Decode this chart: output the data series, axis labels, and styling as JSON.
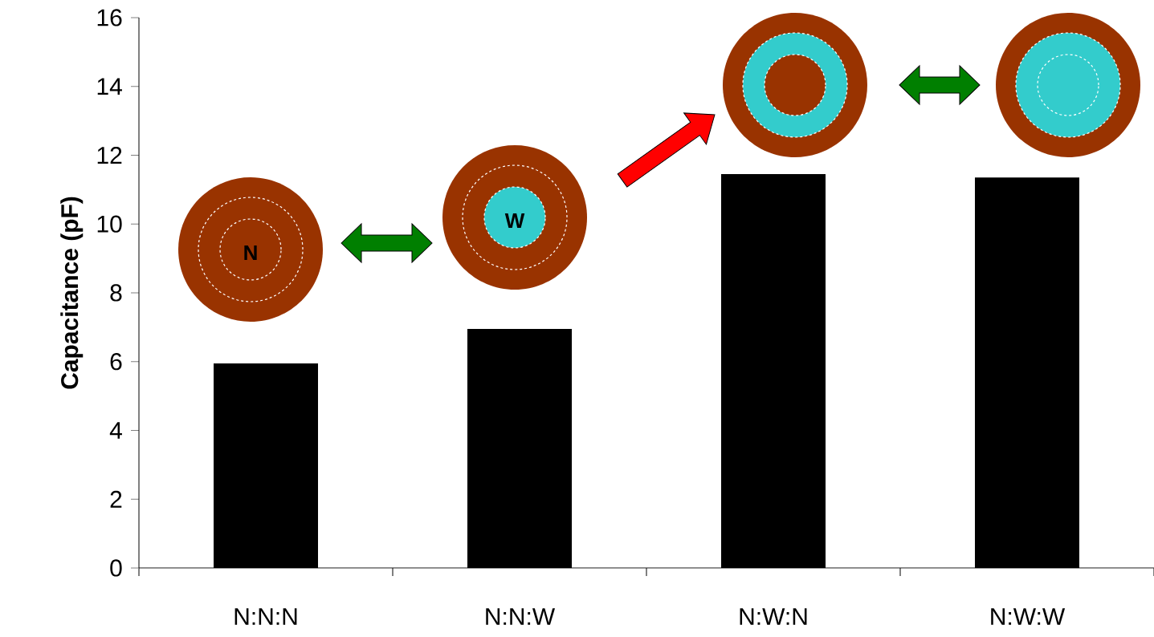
{
  "chart_data": {
    "type": "bar",
    "ylabel": "Capacitance (pF)",
    "categories": [
      "N:N:N",
      "N:N:W",
      "N:W:N",
      "N:W:W"
    ],
    "values": [
      5.95,
      6.95,
      11.45,
      11.35
    ],
    "color": "#000000",
    "ylim": [
      0,
      16
    ],
    "yticks": [
      0,
      2,
      4,
      6,
      8,
      10,
      12,
      14,
      16
    ],
    "annotations": [
      "N",
      "W"
    ]
  }
}
